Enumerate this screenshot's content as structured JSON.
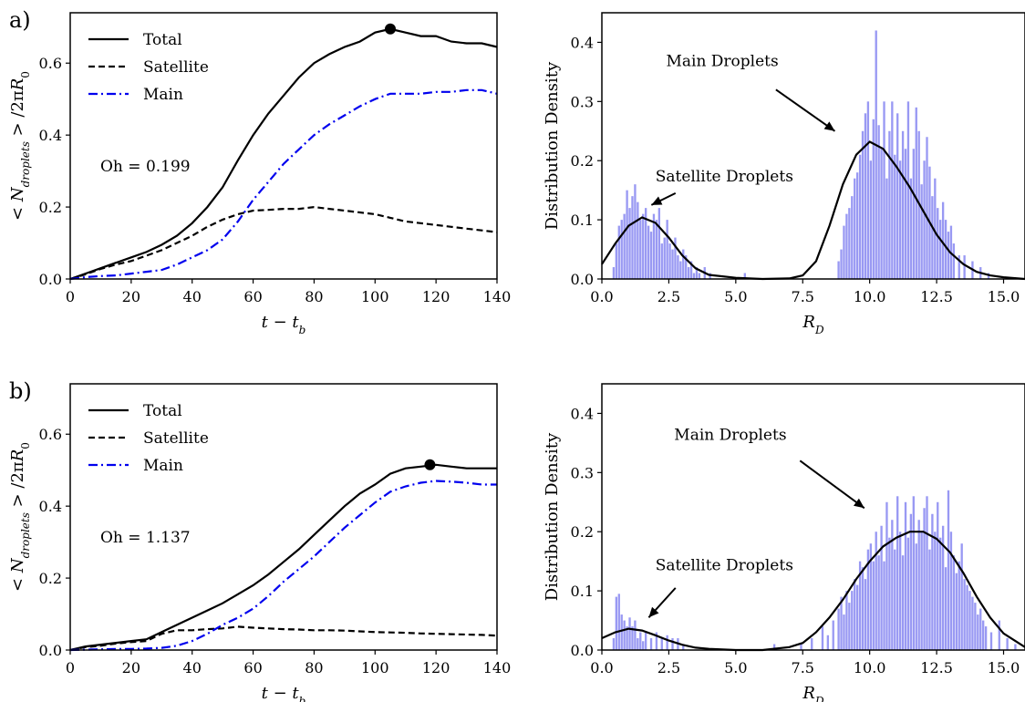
{
  "chart_data": [
    {
      "type": "line",
      "panel": "a)",
      "xlabel": "t − t_b",
      "ylabel": "< N_droplets > / 2πR_0",
      "xlim": [
        0,
        140
      ],
      "ylim": [
        0,
        0.74
      ],
      "xticks": [
        "0",
        "20",
        "40",
        "60",
        "80",
        "100",
        "120",
        "140"
      ],
      "yticks": [
        "0.0",
        "0.2",
        "0.4",
        "0.6"
      ],
      "annotation": "Oh = 0.199",
      "legend": "top-left",
      "grid": false,
      "x": [
        0,
        5,
        10,
        15,
        20,
        25,
        30,
        35,
        40,
        45,
        50,
        55,
        60,
        65,
        70,
        75,
        80,
        85,
        90,
        95,
        100,
        105,
        110,
        115,
        120,
        125,
        130,
        135,
        140
      ],
      "series": [
        {
          "name": "Total",
          "style": "solid",
          "color": "#000000",
          "values": [
            0.0,
            0.015,
            0.03,
            0.045,
            0.06,
            0.075,
            0.095,
            0.12,
            0.155,
            0.2,
            0.255,
            0.33,
            0.4,
            0.46,
            0.51,
            0.56,
            0.6,
            0.625,
            0.645,
            0.66,
            0.685,
            0.695,
            0.685,
            0.675,
            0.675,
            0.66,
            0.655,
            0.655,
            0.645
          ]
        },
        {
          "name": "Satellite",
          "style": "dashed",
          "color": "#000000",
          "values": [
            0.0,
            0.013,
            0.028,
            0.04,
            0.05,
            0.065,
            0.08,
            0.1,
            0.12,
            0.145,
            0.165,
            0.18,
            0.19,
            0.192,
            0.195,
            0.195,
            0.2,
            0.195,
            0.19,
            0.185,
            0.18,
            0.17,
            0.16,
            0.155,
            0.15,
            0.145,
            0.14,
            0.135,
            0.13
          ]
        },
        {
          "name": "Main",
          "style": "dashdot",
          "color": "#0000ee",
          "values": [
            0.0,
            0.005,
            0.008,
            0.01,
            0.015,
            0.02,
            0.025,
            0.04,
            0.06,
            0.08,
            0.11,
            0.16,
            0.22,
            0.27,
            0.32,
            0.36,
            0.4,
            0.43,
            0.455,
            0.48,
            0.5,
            0.515,
            0.515,
            0.515,
            0.52,
            0.52,
            0.525,
            0.525,
            0.515
          ]
        }
      ],
      "marker": {
        "x": 105,
        "y": 0.695
      }
    },
    {
      "type": "bar",
      "panel": "a-right",
      "xlabel": "R_D",
      "ylabel": "Distribution Density",
      "xlim": [
        0,
        15.8
      ],
      "ylim": [
        0,
        0.45
      ],
      "xticks": [
        "0.0",
        "2.5",
        "5.0",
        "7.5",
        "10.0",
        "12.5",
        "15.0"
      ],
      "yticks": [
        "0.0",
        "0.1",
        "0.2",
        "0.3",
        "0.4"
      ],
      "hist_color": "#8080f0",
      "bins": [
        0.4,
        0.5,
        0.6,
        0.7,
        0.8,
        0.9,
        1.0,
        1.1,
        1.2,
        1.3,
        1.4,
        1.5,
        1.6,
        1.7,
        1.8,
        1.9,
        2.0,
        2.1,
        2.2,
        2.3,
        2.4,
        2.5,
        2.6,
        2.7,
        2.8,
        2.9,
        3.0,
        3.1,
        3.2,
        3.3,
        3.4,
        3.5,
        3.6,
        3.8,
        4.0,
        5.3,
        8.8,
        8.9,
        9.0,
        9.1,
        9.2,
        9.3,
        9.4,
        9.5,
        9.6,
        9.7,
        9.8,
        9.9,
        10.0,
        10.1,
        10.2,
        10.3,
        10.4,
        10.5,
        10.6,
        10.7,
        10.8,
        10.9,
        11.0,
        11.1,
        11.2,
        11.3,
        11.4,
        11.5,
        11.6,
        11.7,
        11.8,
        11.9,
        12.0,
        12.1,
        12.2,
        12.3,
        12.4,
        12.5,
        12.6,
        12.7,
        12.8,
        12.9,
        13.0,
        13.1,
        13.3,
        13.5,
        13.8,
        14.1,
        14.4
      ],
      "heights": [
        0.02,
        0.06,
        0.09,
        0.1,
        0.11,
        0.15,
        0.12,
        0.14,
        0.16,
        0.13,
        0.1,
        0.11,
        0.12,
        0.09,
        0.08,
        0.11,
        0.1,
        0.12,
        0.06,
        0.07,
        0.1,
        0.06,
        0.05,
        0.07,
        0.04,
        0.03,
        0.05,
        0.04,
        0.02,
        0.03,
        0.01,
        0.02,
        0.01,
        0.02,
        0.01,
        0.01,
        0.03,
        0.05,
        0.09,
        0.11,
        0.12,
        0.14,
        0.17,
        0.18,
        0.21,
        0.25,
        0.28,
        0.3,
        0.2,
        0.27,
        0.42,
        0.26,
        0.22,
        0.3,
        0.17,
        0.25,
        0.3,
        0.21,
        0.28,
        0.2,
        0.25,
        0.22,
        0.3,
        0.17,
        0.22,
        0.29,
        0.25,
        0.16,
        0.2,
        0.24,
        0.19,
        0.14,
        0.17,
        0.12,
        0.1,
        0.13,
        0.1,
        0.08,
        0.09,
        0.06,
        0.04,
        0.04,
        0.03,
        0.02,
        0.01
      ],
      "kde": {
        "x": [
          0,
          0.5,
          1.0,
          1.5,
          2.0,
          2.5,
          3.0,
          3.5,
          4.0,
          5.0,
          6.0,
          7.0,
          7.5,
          8.0,
          8.5,
          9.0,
          9.5,
          10.0,
          10.5,
          11.0,
          11.5,
          12.0,
          12.5,
          13.0,
          13.5,
          14.0,
          14.5,
          15.0,
          15.8
        ],
        "y": [
          0.025,
          0.06,
          0.09,
          0.104,
          0.095,
          0.07,
          0.04,
          0.018,
          0.007,
          0.002,
          0.0,
          0.001,
          0.006,
          0.03,
          0.09,
          0.16,
          0.21,
          0.232,
          0.22,
          0.19,
          0.155,
          0.115,
          0.075,
          0.045,
          0.025,
          0.012,
          0.006,
          0.003,
          0.0
        ]
      },
      "annotations": [
        {
          "text": "Main Droplets",
          "tx": 2.4,
          "ty": 0.36,
          "ax": 8.7,
          "ay": 0.25,
          "sx": 6.5,
          "sy": 0.32
        },
        {
          "text": "Satellite Droplets",
          "tx": 2.0,
          "ty": 0.165,
          "ax": 1.85,
          "ay": 0.125,
          "sx": 2.75,
          "sy": 0.145
        }
      ]
    },
    {
      "type": "line",
      "panel": "b)",
      "xlabel": "t − t_b",
      "ylabel": "< N_droplets > / 2πR_0",
      "xlim": [
        0,
        140
      ],
      "ylim": [
        0,
        0.74
      ],
      "xticks": [
        "0",
        "20",
        "40",
        "60",
        "80",
        "100",
        "120",
        "140"
      ],
      "yticks": [
        "0.0",
        "0.2",
        "0.4",
        "0.6"
      ],
      "annotation": "Oh = 1.137",
      "legend": "top-left",
      "grid": false,
      "x": [
        0,
        5,
        10,
        15,
        20,
        25,
        30,
        35,
        40,
        45,
        50,
        55,
        60,
        65,
        70,
        75,
        80,
        85,
        90,
        95,
        100,
        105,
        110,
        115,
        120,
        125,
        130,
        135,
        140
      ],
      "series": [
        {
          "name": "Total",
          "style": "solid",
          "color": "#000000",
          "values": [
            0.0,
            0.01,
            0.015,
            0.02,
            0.025,
            0.03,
            0.05,
            0.07,
            0.09,
            0.11,
            0.13,
            0.155,
            0.18,
            0.21,
            0.245,
            0.28,
            0.32,
            0.36,
            0.4,
            0.435,
            0.46,
            0.49,
            0.505,
            0.51,
            0.515,
            0.51,
            0.505,
            0.505,
            0.505
          ]
        },
        {
          "name": "Satellite",
          "style": "dashed",
          "color": "#000000",
          "values": [
            0.0,
            0.008,
            0.012,
            0.018,
            0.022,
            0.025,
            0.045,
            0.055,
            0.055,
            0.058,
            0.06,
            0.065,
            0.062,
            0.06,
            0.058,
            0.057,
            0.055,
            0.055,
            0.054,
            0.052,
            0.05,
            0.049,
            0.048,
            0.046,
            0.045,
            0.044,
            0.043,
            0.042,
            0.04
          ]
        },
        {
          "name": "Main",
          "style": "dashdot",
          "color": "#0000ee",
          "values": [
            0.0,
            0.001,
            0.002,
            0.003,
            0.003,
            0.004,
            0.006,
            0.012,
            0.025,
            0.045,
            0.07,
            0.09,
            0.115,
            0.15,
            0.19,
            0.225,
            0.26,
            0.3,
            0.34,
            0.375,
            0.41,
            0.44,
            0.455,
            0.465,
            0.47,
            0.468,
            0.465,
            0.46,
            0.46
          ]
        }
      ],
      "marker": {
        "x": 118,
        "y": 0.515
      }
    },
    {
      "type": "bar",
      "panel": "b-right",
      "xlabel": "R_D",
      "ylabel": "Distribution Density",
      "xlim": [
        0,
        15.8
      ],
      "ylim": [
        0,
        0.45
      ],
      "xticks": [
        "0.0",
        "2.5",
        "5.0",
        "7.5",
        "10.0",
        "12.5",
        "15.0"
      ],
      "yticks": [
        "0.0",
        "0.1",
        "0.2",
        "0.3",
        "0.4"
      ],
      "hist_color": "#8080f0",
      "bins": [
        0.4,
        0.5,
        0.6,
        0.7,
        0.8,
        0.9,
        1.0,
        1.1,
        1.2,
        1.3,
        1.4,
        1.5,
        1.6,
        1.8,
        2.0,
        2.2,
        2.4,
        2.6,
        2.8,
        3.0,
        6.4,
        7.4,
        7.8,
        8.2,
        8.4,
        8.6,
        8.8,
        8.9,
        9.0,
        9.1,
        9.2,
        9.3,
        9.4,
        9.5,
        9.6,
        9.7,
        9.8,
        9.9,
        10.0,
        10.1,
        10.2,
        10.3,
        10.4,
        10.5,
        10.6,
        10.7,
        10.8,
        10.9,
        11.0,
        11.1,
        11.2,
        11.3,
        11.4,
        11.5,
        11.6,
        11.7,
        11.8,
        11.9,
        12.0,
        12.1,
        12.2,
        12.3,
        12.4,
        12.5,
        12.6,
        12.7,
        12.8,
        12.9,
        13.0,
        13.1,
        13.2,
        13.3,
        13.4,
        13.5,
        13.6,
        13.7,
        13.8,
        13.9,
        14.0,
        14.1,
        14.2,
        14.3,
        14.5,
        14.8,
        15.1,
        15.4
      ],
      "heights": [
        0.02,
        0.09,
        0.095,
        0.06,
        0.05,
        0.04,
        0.055,
        0.04,
        0.05,
        0.02,
        0.03,
        0.015,
        0.03,
        0.02,
        0.03,
        0.02,
        0.025,
        0.02,
        0.02,
        0.01,
        0.01,
        0.01,
        0.02,
        0.04,
        0.025,
        0.05,
        0.07,
        0.09,
        0.06,
        0.1,
        0.08,
        0.1,
        0.12,
        0.11,
        0.15,
        0.14,
        0.12,
        0.17,
        0.18,
        0.15,
        0.2,
        0.16,
        0.21,
        0.15,
        0.25,
        0.19,
        0.22,
        0.17,
        0.26,
        0.2,
        0.16,
        0.25,
        0.19,
        0.23,
        0.26,
        0.18,
        0.22,
        0.2,
        0.24,
        0.26,
        0.17,
        0.23,
        0.2,
        0.25,
        0.19,
        0.21,
        0.14,
        0.27,
        0.2,
        0.16,
        0.13,
        0.15,
        0.18,
        0.12,
        0.11,
        0.1,
        0.09,
        0.08,
        0.06,
        0.07,
        0.05,
        0.04,
        0.03,
        0.05,
        0.02,
        0.01
      ],
      "kde": {
        "x": [
          0,
          0.5,
          1.0,
          1.5,
          2.0,
          2.5,
          3.0,
          3.5,
          4.0,
          5.0,
          6.0,
          7.0,
          7.5,
          8.0,
          8.5,
          9.0,
          9.5,
          10.0,
          10.5,
          11.0,
          11.5,
          12.0,
          12.5,
          13.0,
          13.5,
          14.0,
          14.5,
          15.0,
          15.8
        ],
        "y": [
          0.02,
          0.03,
          0.036,
          0.033,
          0.025,
          0.016,
          0.009,
          0.004,
          0.002,
          0.0,
          0.0,
          0.005,
          0.012,
          0.03,
          0.055,
          0.085,
          0.12,
          0.15,
          0.175,
          0.19,
          0.2,
          0.2,
          0.188,
          0.165,
          0.13,
          0.09,
          0.055,
          0.028,
          0.005
        ]
      },
      "annotations": [
        {
          "text": "Main Droplets",
          "tx": 2.7,
          "ty": 0.355,
          "ax": 9.8,
          "ay": 0.24,
          "sx": 7.4,
          "sy": 0.32
        },
        {
          "text": "Satellite Droplets",
          "tx": 2.0,
          "ty": 0.135,
          "ax": 1.75,
          "ay": 0.055,
          "sx": 2.75,
          "sy": 0.105
        }
      ]
    }
  ]
}
